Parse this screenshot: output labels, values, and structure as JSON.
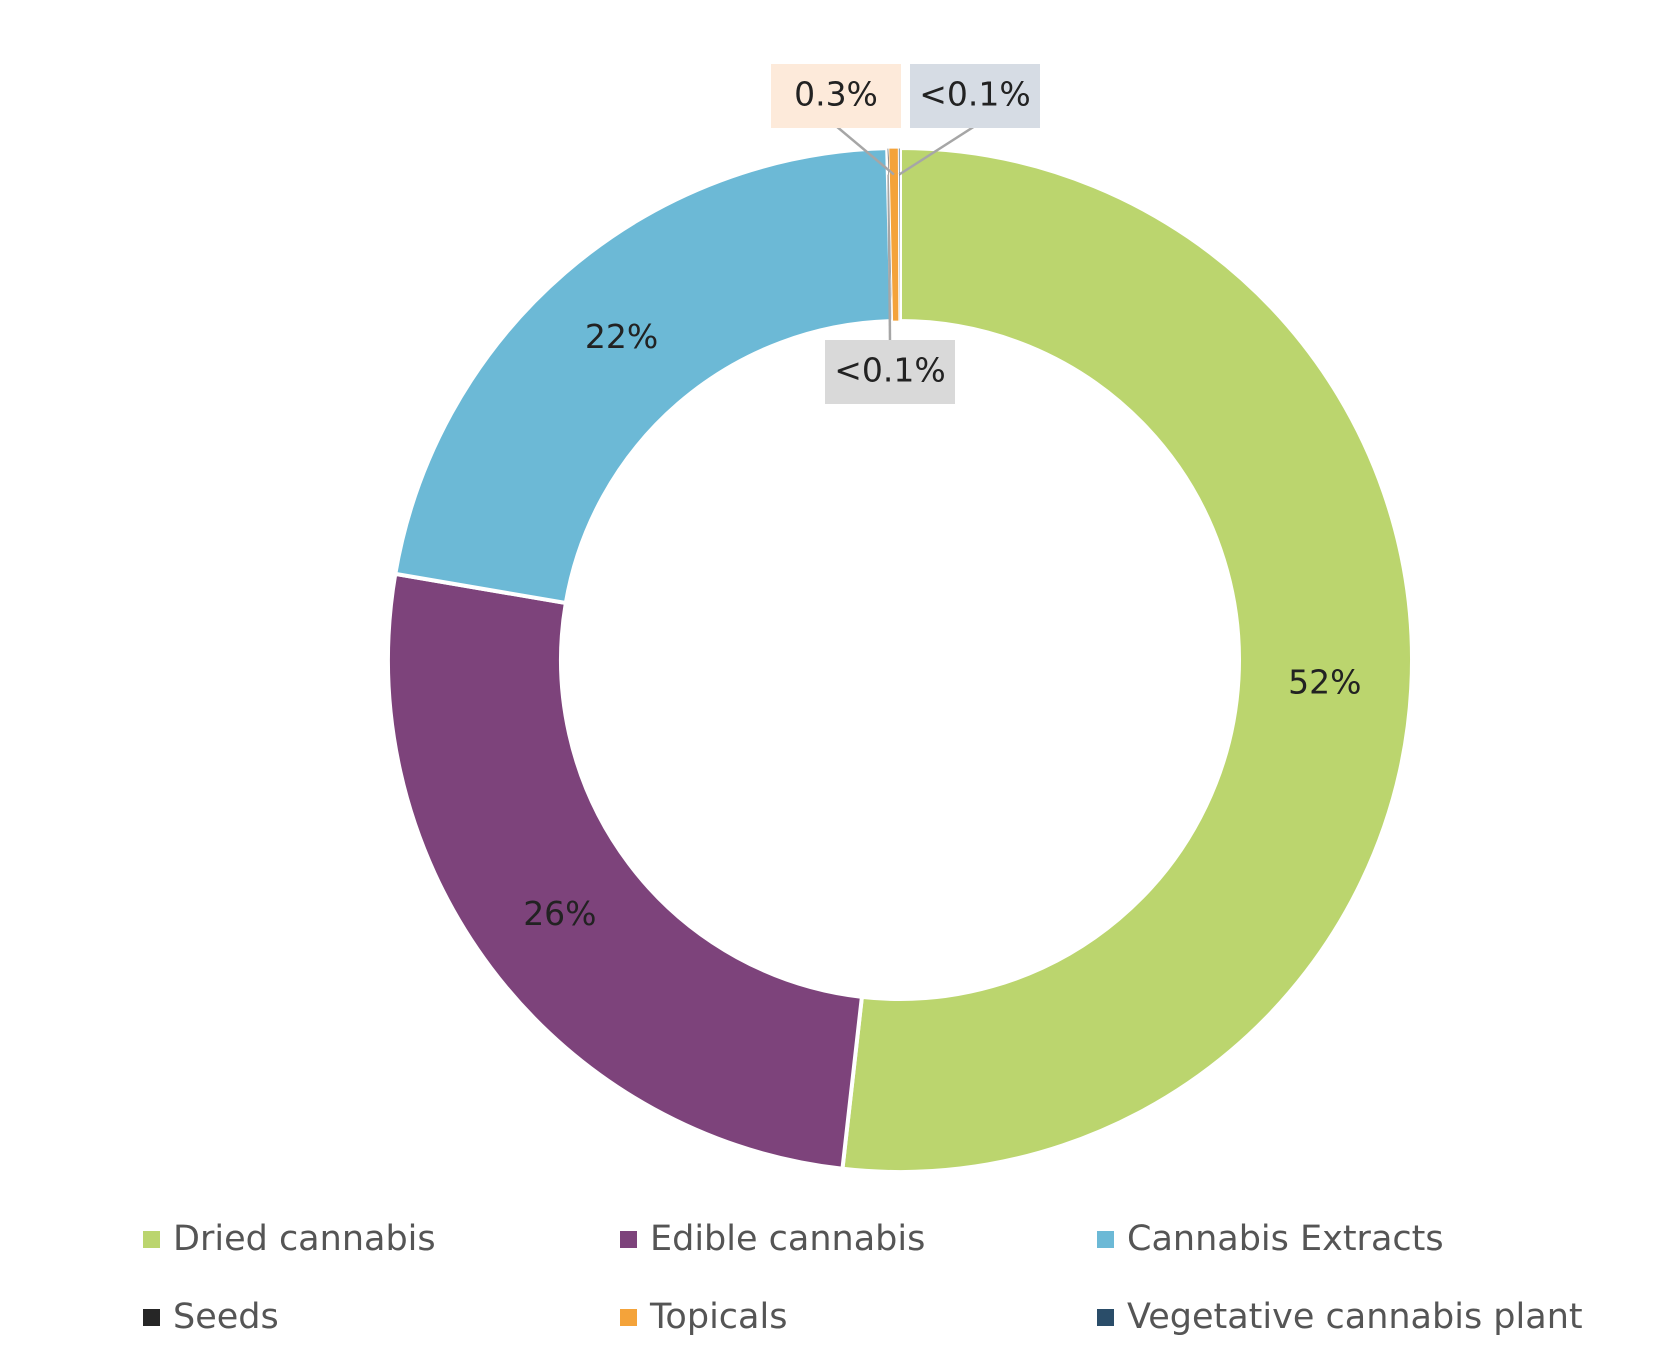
{
  "chart_data": {
    "type": "donut",
    "categories": [
      "Dried cannabis",
      "Edible cannabis",
      "Cannabis Extracts",
      "Seeds",
      "Topicals",
      "Vegetative cannabis plant"
    ],
    "values": [
      52,
      26,
      22,
      0.05,
      0.3,
      0.05
    ],
    "value_labels": [
      "52%",
      "26%",
      "22%",
      "<0.1%",
      "0.3%",
      "<0.1%"
    ],
    "colors": [
      "#bbd56e",
      "#7d437b",
      "#6cb9d6",
      "#262626",
      "#f4a33a",
      "#2a4d69"
    ],
    "legend": "bottom"
  }
}
